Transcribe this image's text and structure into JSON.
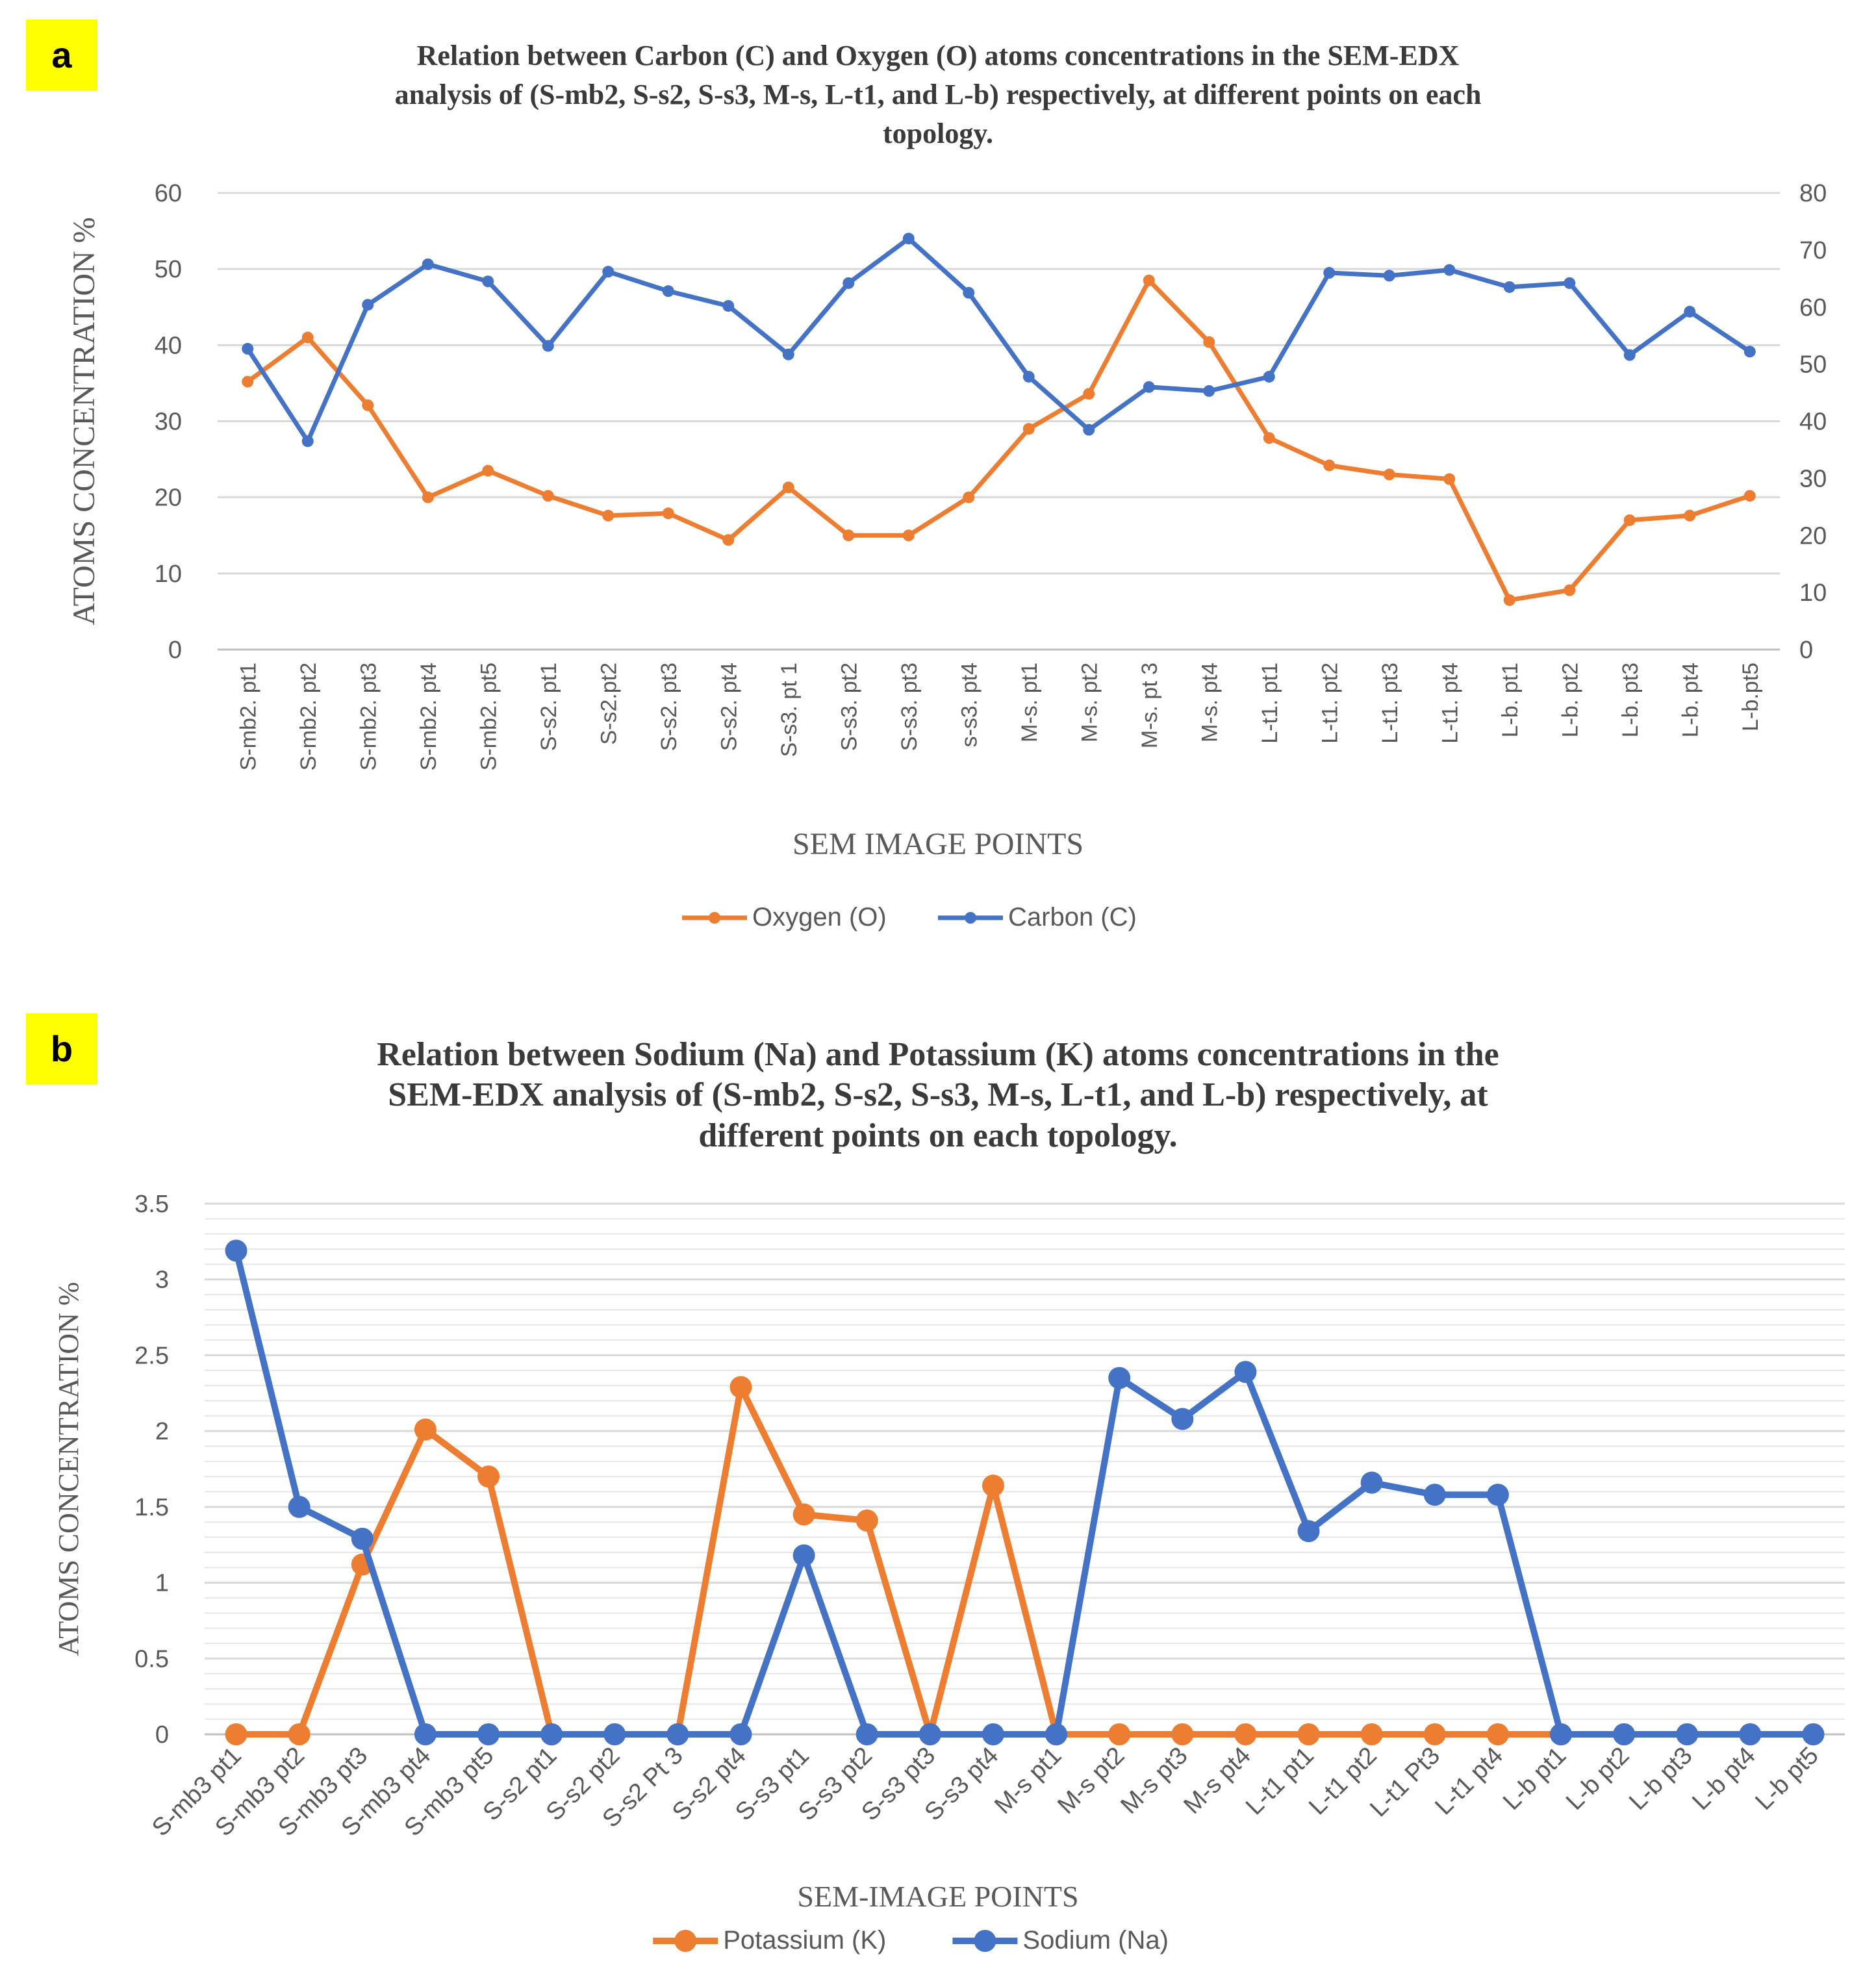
{
  "chart_data": [
    {
      "type": "line",
      "panel_label": "a",
      "title": "Relation between Carbon (C) and Oxygen (O) atoms concentrations in the SEM-EDX analysis of (S-mb2, S-s2, S-s3, M-s, L-t1, and L-b) respectively, at different points on each topology.",
      "title_lines": [
        "Relation between Carbon (C) and Oxygen (O) atoms concentrations in the SEM-EDX",
        "analysis of (S-mb2, S-s2, S-s3, M-s, L-t1, and L-b) respectively, at different points on each",
        "topology."
      ],
      "xlabel": "SEM IMAGE POINTS",
      "ylabel": "ATOMS CONCENTRATION %",
      "ylim": [
        0,
        60
      ],
      "yticks": [
        "0",
        "10",
        "20",
        "30",
        "40",
        "50",
        "60"
      ],
      "y2lim": [
        0,
        80
      ],
      "y2ticks": [
        "0",
        "10",
        "20",
        "30",
        "40",
        "50",
        "60",
        "70",
        "80"
      ],
      "grid": true,
      "legend_position": "bottom",
      "categories": [
        "S-mb2. pt1",
        "S-mb2. pt2",
        "S-mb2. pt3",
        "S-mb2. pt4",
        "S-mb2. pt5",
        "S-s2. pt1",
        "S-s2.pt2",
        "S-s2. pt3",
        "S-s2. pt4",
        "S-s3. pt 1",
        "S-s3. pt2",
        "S-s3. pt3",
        "s-s3. pt4",
        "M-s. pt1",
        "M-s. pt2",
        "M-s. pt 3",
        "M-s. pt4",
        "L-t1. pt1",
        "L-t1. pt2",
        "L-t1. pt3",
        "L-t1. pt4",
        "L-b. pt1",
        "L-b. pt2",
        "L-b. pt3",
        "L-b. pt4",
        "L-b.pt5"
      ],
      "series": [
        {
          "name": "Oxygen (O)",
          "color": "#ed7d31",
          "axis": "left",
          "values": [
            35.2,
            41.0,
            32.1,
            20.0,
            23.5,
            20.2,
            17.6,
            17.9,
            14.4,
            21.3,
            15.0,
            15.0,
            20.0,
            29.0,
            33.6,
            48.5,
            40.4,
            27.8,
            24.2,
            23.0,
            22.4,
            6.5,
            7.8,
            17.0,
            17.6,
            20.2
          ]
        },
        {
          "name": "Carbon (C)",
          "color": "#4472c4",
          "axis": "right",
          "values": [
            52.7,
            36.5,
            60.4,
            67.5,
            64.5,
            53.2,
            66.2,
            62.8,
            60.2,
            51.7,
            64.2,
            72.0,
            62.5,
            47.8,
            38.5,
            46.0,
            45.3,
            47.8,
            66.0,
            65.5,
            66.5,
            63.5,
            64.2,
            51.6,
            59.2,
            52.2
          ]
        }
      ]
    },
    {
      "type": "line",
      "panel_label": "b",
      "title": "Relation between Sodium (Na) and Potassium (K) atoms concentrations in the SEM-EDX analysis of (S-mb2, S-s2, S-s3, M-s, L-t1, and L-b) respectively, at different points on each topology.",
      "title_lines": [
        "Relation between Sodium (Na) and Potassium (K) atoms concentrations in the",
        "SEM-EDX analysis of (S-mb2, S-s2, S-s3, M-s, L-t1, and L-b) respectively, at",
        "different points on each topology."
      ],
      "xlabel": "SEM-IMAGE POINTS",
      "ylabel": "ATOMS CONCENTRATION %",
      "ylim": [
        0,
        3.5
      ],
      "yticks": [
        "0",
        "0.5",
        "1",
        "1.5",
        "2",
        "2.5",
        "3",
        "3.5"
      ],
      "grid": true,
      "legend_position": "bottom",
      "categories": [
        "S-mb3 pt1",
        "S-mb3 pt2",
        "S-mb3 pt3",
        "S-mb3 pt4",
        "S-mb3 pt5",
        "S-s2 pt1",
        "S-s2 pt2",
        "S-s2 Pt 3",
        "S-s2 pt4",
        "S-s3 pt1",
        "S-s3 pt2",
        "S-s3 pt3",
        "S-s3 pt4",
        "M-s pt1",
        "M-s pt2",
        "M-s pt3",
        "M-s pt4",
        "L-t1 pt1",
        "L-t1 pt2",
        "L-t1 Pt3",
        "L-t1 pt4",
        "L-b pt1",
        "L-b pt2",
        "L-b pt3",
        "L-b pt4",
        "L-b pt5"
      ],
      "series": [
        {
          "name": "Potassium (K)",
          "color": "#ed7d31",
          "axis": "left",
          "values": [
            0,
            0,
            1.12,
            2.01,
            1.7,
            0,
            0,
            0,
            2.29,
            1.45,
            1.41,
            0,
            1.64,
            0,
            0,
            0,
            0,
            0,
            0,
            0,
            0,
            0,
            0,
            0,
            0,
            0
          ]
        },
        {
          "name": "Sodium (Na)",
          "color": "#4472c4",
          "axis": "left",
          "values": [
            3.19,
            1.5,
            1.29,
            0,
            0,
            0,
            0,
            0,
            0,
            1.18,
            0,
            0,
            0,
            0,
            2.35,
            2.08,
            2.39,
            1.34,
            1.66,
            1.58,
            1.58,
            0,
            0,
            0,
            0,
            0
          ]
        }
      ]
    }
  ]
}
